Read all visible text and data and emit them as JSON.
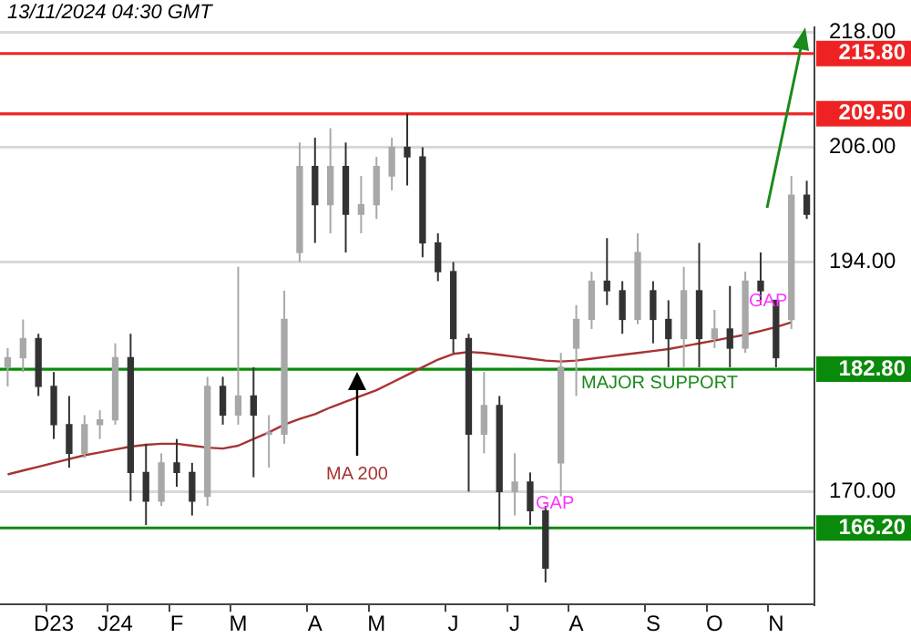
{
  "chart_data": {
    "type": "candlestick",
    "title": "13/11/2024 04:30 GMT",
    "categories": [
      null,
      null,
      null,
      "D23",
      null,
      null,
      null,
      "J24",
      null,
      null,
      null,
      "F",
      null,
      null,
      null,
      "M",
      null,
      null,
      null,
      null,
      "A",
      null,
      null,
      null,
      "M",
      null,
      null,
      null,
      null,
      "J",
      null,
      null,
      null,
      "J",
      null,
      null,
      null,
      "A",
      null,
      null,
      null,
      null,
      "S",
      null,
      null,
      null,
      "O",
      null,
      null,
      null,
      "N",
      null,
      null
    ],
    "series": [
      {
        "type": "candlestick",
        "colors": [
          "#a8a8a8",
          "#a8a8a8",
          "#333333",
          "#333333",
          "#333333",
          "#a8a8a8",
          "#a8a8a8",
          "#a8a8a8",
          "#333333",
          "#333333",
          "#a8a8a8",
          "#333333",
          "#333333",
          "#a8a8a8",
          "#333333",
          "#a8a8a8",
          "#333333",
          "#a8a8a8",
          "#a8a8a8",
          "#a8a8a8",
          "#333333",
          "#a8a8a8",
          "#333333",
          "#a8a8a8",
          "#a8a8a8",
          "#a8a8a8",
          "#333333",
          "#333333",
          "#333333",
          "#333333",
          "#333333",
          "#a8a8a8",
          "#333333",
          "#a8a8a8",
          "#333333",
          "#333333",
          "#a8a8a8",
          "#a8a8a8",
          "#a8a8a8",
          "#333333",
          "#333333",
          "#a8a8a8",
          "#333333",
          "#333333",
          "#a8a8a8",
          "#333333",
          "#a8a8a8",
          "#333333",
          "#a8a8a8",
          "#333333",
          "#333333",
          "#a8a8a8",
          "#333333"
        ],
        "ohlc": [
          [
            183,
            185,
            181,
            184
          ],
          [
            184,
            188,
            182.5,
            186
          ],
          [
            186,
            186.5,
            180,
            181
          ],
          [
            181,
            182.5,
            175.5,
            177
          ],
          [
            177,
            180,
            172.5,
            174
          ],
          [
            174,
            178,
            173.5,
            177
          ],
          [
            177,
            178.5,
            175.5,
            177.5
          ],
          [
            177.5,
            185.5,
            177,
            184
          ],
          [
            184,
            186.5,
            169,
            172
          ],
          [
            172,
            175,
            166.5,
            169
          ],
          [
            169,
            174,
            168.5,
            173
          ],
          [
            173,
            175.5,
            170.5,
            172
          ],
          [
            172,
            173,
            167.5,
            169
          ],
          [
            169.5,
            182,
            168.5,
            181
          ],
          [
            181,
            182,
            177,
            178
          ],
          [
            178,
            193.5,
            177,
            180
          ],
          [
            180,
            183,
            171.5,
            178
          ],
          [
            176,
            178,
            172.5,
            176
          ],
          [
            176,
            191,
            175,
            188
          ],
          [
            195,
            206.5,
            194,
            204
          ],
          [
            204,
            207,
            196,
            200
          ],
          [
            200,
            208,
            197,
            204
          ],
          [
            204,
            206.5,
            195,
            199
          ],
          [
            199,
            203,
            197,
            200
          ],
          [
            200,
            205,
            198.5,
            204
          ],
          [
            203,
            207,
            201.5,
            206
          ],
          [
            206,
            209.5,
            202,
            205
          ],
          [
            205,
            206,
            194.5,
            196
          ],
          [
            196,
            197,
            192,
            193
          ],
          [
            193,
            194,
            184.5,
            186
          ],
          [
            186,
            186.5,
            170,
            176
          ],
          [
            176,
            182.5,
            174,
            179
          ],
          [
            179,
            180,
            166,
            170
          ],
          [
            170,
            174,
            167.5,
            171
          ],
          [
            171,
            172,
            166.5,
            168
          ],
          [
            168,
            168.5,
            160.5,
            162
          ],
          [
            173,
            184.5,
            169.5,
            183
          ],
          [
            185,
            189.5,
            180,
            188
          ],
          [
            188,
            193,
            187,
            192
          ],
          [
            192,
            196.5,
            189.5,
            191
          ],
          [
            191,
            192,
            186.5,
            188
          ],
          [
            188,
            197,
            187.5,
            195
          ],
          [
            191,
            192,
            185.5,
            188
          ],
          [
            188,
            190,
            183,
            186
          ],
          [
            186,
            193.5,
            183,
            191
          ],
          [
            191,
            196,
            183,
            186
          ],
          [
            186,
            189,
            185,
            187
          ],
          [
            187,
            191.5,
            183,
            185
          ],
          [
            185,
            193,
            184.5,
            192
          ],
          [
            192,
            195,
            189.5,
            191
          ],
          [
            190,
            190,
            183,
            184
          ],
          [
            188,
            203,
            187,
            201
          ],
          [
            201,
            202.5,
            198.5,
            199
          ]
        ]
      },
      {
        "type": "line",
        "name": "MA 200",
        "color": "#a83232",
        "values": [
          171.8,
          172.2,
          172.6,
          173,
          173.4,
          173.8,
          174.1,
          174.4,
          174.7,
          174.9,
          175,
          175,
          174.8,
          174.6,
          174.5,
          174.8,
          175.5,
          176.2,
          177,
          177.6,
          178.1,
          178.8,
          179.4,
          180,
          180.6,
          181.4,
          182.2,
          183,
          183.8,
          184.4,
          184.6,
          184.5,
          184.3,
          184.1,
          183.9,
          183.7,
          183.6,
          183.7,
          183.9,
          184.1,
          184.3,
          184.5,
          184.7,
          184.9,
          185.2,
          185.5,
          185.8,
          186.1,
          186.4,
          186.8,
          187.2,
          187.7,
          null
        ]
      }
    ],
    "ylim": [
      158.2,
      218.5
    ],
    "yticks": [
      {
        "value": 170,
        "label": "170.00"
      },
      {
        "value": 194,
        "label": "194.00"
      },
      {
        "value": 206,
        "label": "206.00"
      },
      {
        "value": 218,
        "label": "218.00"
      }
    ],
    "grid": "y",
    "legend": false,
    "ref_lines": [
      {
        "axis": "y",
        "value": 215.8,
        "label": "215.80",
        "color": "#ee2222"
      },
      {
        "axis": "y",
        "value": 209.5,
        "label": "209.50",
        "color": "#ee2222"
      },
      {
        "axis": "y",
        "value": 182.8,
        "label": "182.80",
        "color": "#0a8a0a"
      },
      {
        "axis": "y",
        "value": 166.2,
        "label": "166.20",
        "color": "#0a8a0a"
      }
    ],
    "annotations": [
      "MAJOR SUPPORT",
      "GAP",
      "GAP"
    ]
  }
}
